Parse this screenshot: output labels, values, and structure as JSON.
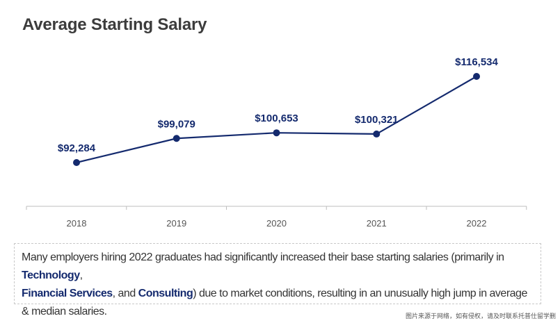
{
  "chart_data": {
    "type": "line",
    "title": "Average Starting Salary",
    "categories": [
      "2018",
      "2019",
      "2020",
      "2021",
      "2022"
    ],
    "values": [
      92284,
      99079,
      100653,
      100321,
      116534
    ],
    "data_labels": [
      "$92,284",
      "$99,079",
      "$100,653",
      "$100,321",
      "$116,534"
    ],
    "xlabel": "",
    "ylabel": "",
    "ylim": [
      75000,
      122000
    ],
    "grid": false,
    "line_color": "#142a6e"
  },
  "note": {
    "part1": "Many employers hiring 2022 graduates had significantly increased their base starting salaries (primarily in ",
    "tech": "Technology",
    "part2": ",",
    "fin": "Financial Services",
    "part3": ", and ",
    "cons": "Consulting",
    "part4": ") due to market conditions, resulting in an unusually high jump in average & median salaries."
  },
  "watermark": "图片来源于网络，如有侵权，请及时联系托普仕留学删"
}
